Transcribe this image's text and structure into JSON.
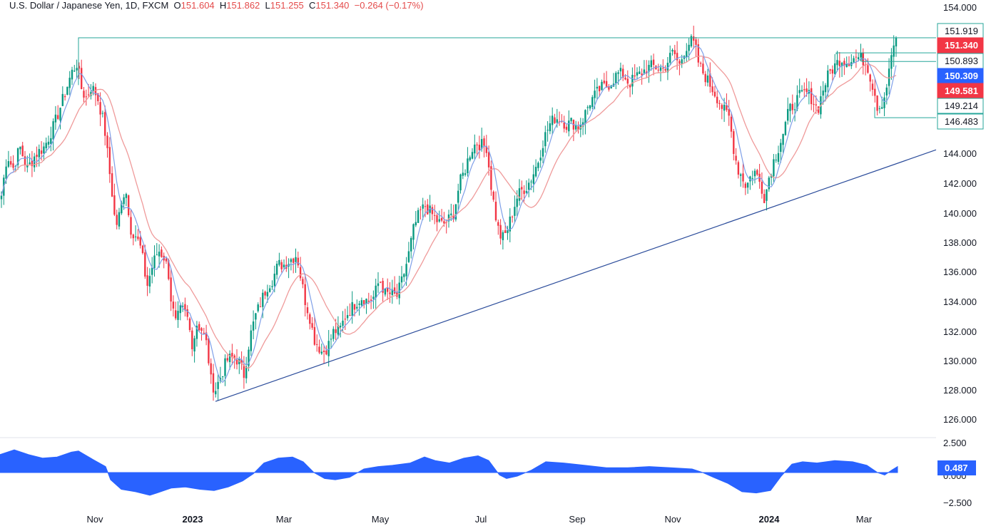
{
  "header": {
    "symbol": "U.S. Dollar / Japanese Yen, 1D, FXCM",
    "o_label": "O",
    "o_value": "151.604",
    "h_label": "H",
    "h_value": "151.862",
    "l_label": "L",
    "l_value": "151.255",
    "c_label": "C",
    "c_value": "151.340",
    "change": "−0.264 (−0.17%)"
  },
  "colors": {
    "up": "#089981",
    "down": "#f23645",
    "ma_fast": "#7e9fe8",
    "ma_slow": "#ef9a9a",
    "trendline": "#2a4b9a",
    "level": "#26a69a",
    "oscillator": "#2962ff"
  },
  "chart_data": [
    {
      "type": "candlestick",
      "title": "U.S. Dollar / Japanese Yen, 1D, FXCM",
      "ylim": [
        125.0,
        154.5
      ],
      "y_ticks": [
        "154.000",
        "144.000",
        "142.000",
        "140.000",
        "138.000",
        "136.000",
        "134.000",
        "132.000",
        "130.000",
        "128.000",
        "126.000"
      ],
      "x_ticks": [
        {
          "label": "Nov",
          "bold": false
        },
        {
          "label": "2023",
          "bold": true
        },
        {
          "label": "Mar",
          "bold": false
        },
        {
          "label": "May",
          "bold": false
        },
        {
          "label": "Jul",
          "bold": false
        },
        {
          "label": "Sep",
          "bold": false
        },
        {
          "label": "Nov",
          "bold": false
        },
        {
          "label": "2024",
          "bold": true
        },
        {
          "label": "Mar",
          "bold": false
        }
      ],
      "price_path": [
        [
          0,
          140.5
        ],
        [
          10,
          144
        ],
        [
          18,
          143
        ],
        [
          28,
          144.5
        ],
        [
          38,
          143
        ],
        [
          50,
          144
        ],
        [
          62,
          144.5
        ],
        [
          76,
          146
        ],
        [
          90,
          148
        ],
        [
          100,
          149.5
        ],
        [
          108,
          150.2
        ],
        [
          114,
          148.5
        ],
        [
          120,
          147.8
        ],
        [
          128,
          148.6
        ],
        [
          136,
          148
        ],
        [
          146,
          146
        ],
        [
          153,
          143
        ],
        [
          158,
          141
        ],
        [
          162,
          139
        ],
        [
          168,
          140
        ],
        [
          176,
          142
        ],
        [
          182,
          139
        ],
        [
          190,
          138.5
        ],
        [
          198,
          137.5
        ],
        [
          206,
          135
        ],
        [
          214,
          136.5
        ],
        [
          222,
          137.5
        ],
        [
          230,
          137
        ],
        [
          236,
          136
        ],
        [
          240,
          134
        ],
        [
          246,
          132.5
        ],
        [
          254,
          133.5
        ],
        [
          262,
          133
        ],
        [
          270,
          131
        ],
        [
          276,
          132.5
        ],
        [
          284,
          132
        ],
        [
          290,
          131
        ],
        [
          296,
          128.5
        ],
        [
          302,
          128
        ],
        [
          310,
          129
        ],
        [
          318,
          130
        ],
        [
          326,
          130.2
        ],
        [
          334,
          130
        ],
        [
          342,
          129
        ],
        [
          350,
          131.5
        ],
        [
          358,
          133
        ],
        [
          366,
          134
        ],
        [
          374,
          135
        ],
        [
          382,
          135.5
        ],
        [
          390,
          136.5
        ],
        [
          398,
          136.5
        ],
        [
          406,
          136.8
        ],
        [
          416,
          137.2
        ],
        [
          422,
          135.5
        ],
        [
          428,
          134
        ],
        [
          434,
          133
        ],
        [
          440,
          131.5
        ],
        [
          446,
          131
        ],
        [
          452,
          130.5
        ],
        [
          460,
          131
        ],
        [
          468,
          132
        ],
        [
          476,
          132
        ],
        [
          484,
          133
        ],
        [
          492,
          133.5
        ],
        [
          500,
          134
        ],
        [
          508,
          134.3
        ],
        [
          516,
          134
        ],
        [
          524,
          134.3
        ],
        [
          532,
          135.5
        ],
        [
          540,
          134.5
        ],
        [
          548,
          134.5
        ],
        [
          556,
          134.3
        ],
        [
          564,
          135.5
        ],
        [
          572,
          137
        ],
        [
          580,
          139
        ],
        [
          588,
          140
        ],
        [
          596,
          140.5
        ],
        [
          604,
          140
        ],
        [
          612,
          139.5
        ],
        [
          620,
          139.2
        ],
        [
          628,
          139.5
        ],
        [
          636,
          140
        ],
        [
          644,
          142
        ],
        [
          652,
          143
        ],
        [
          660,
          144.3
        ],
        [
          668,
          144.8
        ],
        [
          676,
          144.6
        ],
        [
          682,
          144.5
        ],
        [
          688,
          142
        ],
        [
          694,
          140
        ],
        [
          700,
          138.5
        ],
        [
          706,
          138.3
        ],
        [
          712,
          139
        ],
        [
          718,
          140
        ],
        [
          724,
          141
        ],
        [
          730,
          141.5
        ],
        [
          738,
          141.8
        ],
        [
          746,
          142.5
        ],
        [
          754,
          143.5
        ],
        [
          762,
          145
        ],
        [
          770,
          146
        ],
        [
          778,
          146.5
        ],
        [
          786,
          146.4
        ],
        [
          794,
          146
        ],
        [
          802,
          146.2
        ],
        [
          810,
          145.8
        ],
        [
          818,
          146.5
        ],
        [
          826,
          147.5
        ],
        [
          834,
          148
        ],
        [
          842,
          148.5
        ],
        [
          850,
          148.6
        ],
        [
          858,
          149
        ],
        [
          866,
          149.5
        ],
        [
          874,
          149.4
        ],
        [
          882,
          148.8
        ],
        [
          890,
          149.2
        ],
        [
          898,
          149.5
        ],
        [
          906,
          149.8
        ],
        [
          914,
          150
        ],
        [
          922,
          149.9
        ],
        [
          930,
          149.8
        ],
        [
          938,
          150.5
        ],
        [
          944,
          151
        ],
        [
          952,
          150
        ],
        [
          960,
          151.2
        ],
        [
          968,
          151.7
        ],
        [
          974,
          151.4
        ],
        [
          980,
          150
        ],
        [
          986,
          149.5
        ],
        [
          992,
          149
        ],
        [
          998,
          148.5
        ],
        [
          1006,
          147.8
        ],
        [
          1014,
          147
        ],
        [
          1022,
          146.5
        ],
        [
          1028,
          144.5
        ],
        [
          1034,
          143
        ],
        [
          1040,
          142.5
        ],
        [
          1046,
          141.8
        ],
        [
          1052,
          142.5
        ],
        [
          1058,
          142.8
        ],
        [
          1066,
          142
        ],
        [
          1072,
          141
        ],
        [
          1078,
          142.5
        ],
        [
          1084,
          143.5
        ],
        [
          1090,
          144.3
        ],
        [
          1098,
          145.5
        ],
        [
          1106,
          147
        ],
        [
          1114,
          147.5
        ],
        [
          1122,
          148
        ],
        [
          1130,
          148.2
        ],
        [
          1138,
          147.8
        ],
        [
          1146,
          147
        ],
        [
          1154,
          148.5
        ],
        [
          1162,
          149.5
        ],
        [
          1170,
          150
        ],
        [
          1178,
          150.5
        ],
        [
          1186,
          150.3
        ],
        [
          1194,
          150.5
        ],
        [
          1202,
          150.6
        ],
        [
          1210,
          150.4
        ],
        [
          1216,
          150
        ],
        [
          1220,
          149.2
        ],
        [
          1226,
          148.2
        ],
        [
          1230,
          147.2
        ],
        [
          1234,
          147.3
        ],
        [
          1240,
          148
        ],
        [
          1246,
          149.5
        ],
        [
          1250,
          151
        ],
        [
          1255,
          151.7
        ],
        [
          1258,
          151.34
        ]
      ],
      "ma_fast_offset": 1,
      "ma_slow_offset": 2.8,
      "trendline": [
        [
          2023.0,
          127.2
        ],
        [
          2024.25,
          144.3
        ]
      ],
      "resistance": 151.919,
      "range_box_high": 150.893,
      "range_box_low": 150.309,
      "support": 146.483,
      "price_labels": [
        {
          "value": "151.919",
          "style": "outline"
        },
        {
          "value": "151.340",
          "style": "red"
        },
        {
          "value": "150.893",
          "style": "outline"
        },
        {
          "value": "150.309",
          "style": "blue"
        },
        {
          "value": "149.581",
          "style": "red"
        },
        {
          "value": "149.214",
          "style": "outline"
        },
        {
          "value": "146.483",
          "style": "outline"
        }
      ]
    },
    {
      "type": "area",
      "ylim": [
        -2.6,
        2.6
      ],
      "y_ticks": [
        "2.500",
        "0.000",
        "−2.500"
      ],
      "last_value": "0.487",
      "points": [
        [
          0,
          1.5
        ],
        [
          20,
          1.9
        ],
        [
          40,
          1.5
        ],
        [
          60,
          1.2
        ],
        [
          80,
          1.3
        ],
        [
          100,
          1.7
        ],
        [
          110,
          1.8
        ],
        [
          130,
          1.1
        ],
        [
          148,
          0.5
        ],
        [
          155,
          -0.6
        ],
        [
          170,
          -1.4
        ],
        [
          190,
          -1.6
        ],
        [
          210,
          -1.9
        ],
        [
          220,
          -1.7
        ],
        [
          240,
          -1.3
        ],
        [
          260,
          -1.2
        ],
        [
          280,
          -1.4
        ],
        [
          300,
          -1.5
        ],
        [
          320,
          -1.2
        ],
        [
          340,
          -0.7
        ],
        [
          355,
          -0.1
        ],
        [
          370,
          0.8
        ],
        [
          390,
          1.2
        ],
        [
          410,
          1.3
        ],
        [
          425,
          0.9
        ],
        [
          440,
          0.0
        ],
        [
          455,
          -0.5
        ],
        [
          470,
          -0.6
        ],
        [
          490,
          -0.4
        ],
        [
          510,
          0.3
        ],
        [
          530,
          0.5
        ],
        [
          550,
          0.6
        ],
        [
          575,
          0.8
        ],
        [
          595,
          1.3
        ],
        [
          610,
          1.0
        ],
        [
          630,
          0.8
        ],
        [
          650,
          1.2
        ],
        [
          670,
          1.4
        ],
        [
          685,
          1.0
        ],
        [
          700,
          -0.2
        ],
        [
          710,
          -0.5
        ],
        [
          725,
          -0.3
        ],
        [
          745,
          0.2
        ],
        [
          765,
          0.9
        ],
        [
          790,
          0.8
        ],
        [
          820,
          0.6
        ],
        [
          850,
          0.4
        ],
        [
          880,
          0.4
        ],
        [
          910,
          0.5
        ],
        [
          940,
          0.4
        ],
        [
          970,
          0.3
        ],
        [
          985,
          0.0
        ],
        [
          1000,
          -0.4
        ],
        [
          1020,
          -0.9
        ],
        [
          1040,
          -1.6
        ],
        [
          1060,
          -1.7
        ],
        [
          1080,
          -1.5
        ],
        [
          1095,
          -0.3
        ],
        [
          1110,
          0.7
        ],
        [
          1125,
          0.9
        ],
        [
          1145,
          0.8
        ],
        [
          1170,
          1.0
        ],
        [
          1195,
          0.9
        ],
        [
          1215,
          0.6
        ],
        [
          1230,
          0.0
        ],
        [
          1240,
          -0.2
        ],
        [
          1250,
          0.2
        ],
        [
          1258,
          0.5
        ]
      ]
    }
  ]
}
